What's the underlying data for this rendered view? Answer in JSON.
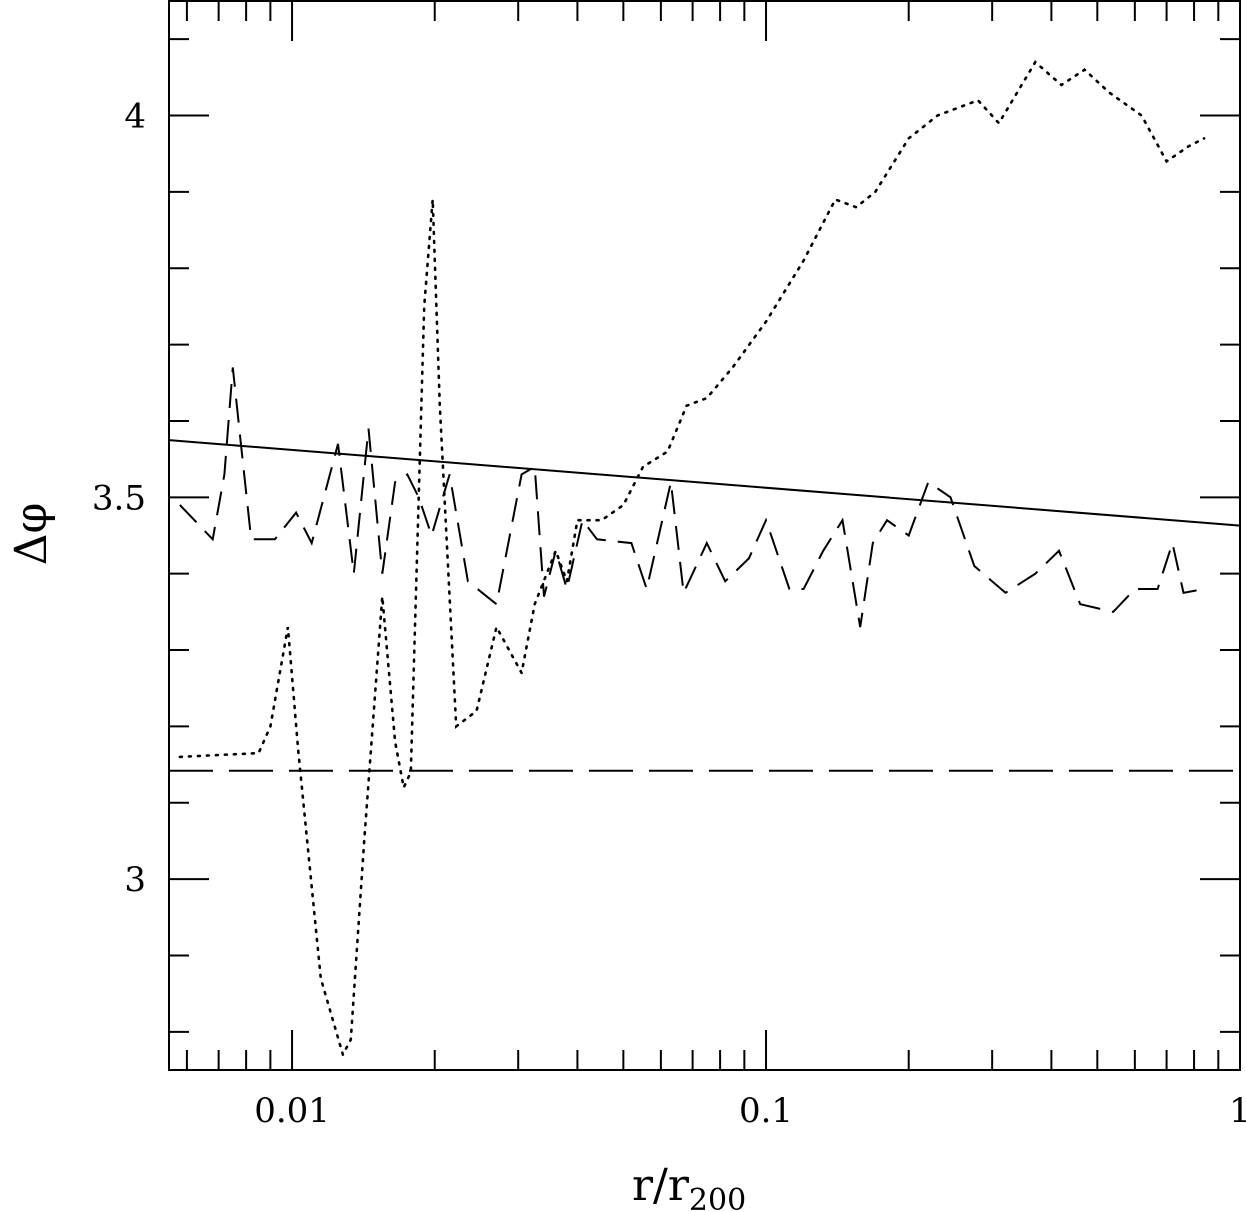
{
  "chart_data": {
    "type": "line",
    "xlabel": "r/r",
    "xlabel_sub": "200",
    "ylabel": "Δφ",
    "xscale": "log",
    "xlim": [
      0.0055,
      1.0
    ],
    "ylim": [
      2.75,
      4.15
    ],
    "grid": false,
    "legend": "none",
    "x_ticks": [
      {
        "value": 0.01,
        "label": "0.01"
      },
      {
        "value": 0.1,
        "label": "0.1"
      },
      {
        "value": 1,
        "label": "1"
      }
    ],
    "y_ticks": [
      {
        "value": 3,
        "label": "3"
      },
      {
        "value": 3.5,
        "label": "3.5"
      },
      {
        "value": 4,
        "label": "4"
      }
    ],
    "series": [
      {
        "style": "solid",
        "x": [
          0.0055,
          1.0
        ],
        "y": [
          3.575,
          3.463
        ]
      },
      {
        "style": "longdash",
        "x": [
          0.0055,
          1.0
        ],
        "y": [
          3.142,
          3.142
        ]
      },
      {
        "style": "dashed",
        "x": [
          0.0058,
          0.0068,
          0.0072,
          0.0075,
          0.0078,
          0.0082,
          0.0092,
          0.0102,
          0.011,
          0.0125,
          0.0135,
          0.0145,
          0.0155,
          0.0165,
          0.0175,
          0.0185,
          0.0197,
          0.0215,
          0.0235,
          0.027,
          0.0305,
          0.0325,
          0.034,
          0.036,
          0.038,
          0.041,
          0.044,
          0.052,
          0.056,
          0.063,
          0.067,
          0.075,
          0.082,
          0.092,
          0.1,
          0.112,
          0.12,
          0.132,
          0.145,
          0.158,
          0.168,
          0.18,
          0.2,
          0.22,
          0.245,
          0.275,
          0.32,
          0.37,
          0.415,
          0.46,
          0.54,
          0.6,
          0.67,
          0.72,
          0.76,
          0.84
        ],
        "y": [
          3.49,
          3.445,
          3.53,
          3.67,
          3.57,
          3.445,
          3.445,
          3.48,
          3.44,
          3.57,
          3.4,
          3.59,
          3.4,
          3.52,
          3.53,
          3.5,
          3.45,
          3.53,
          3.39,
          3.36,
          3.53,
          3.54,
          3.37,
          3.43,
          3.38,
          3.47,
          3.445,
          3.44,
          3.38,
          3.52,
          3.375,
          3.44,
          3.39,
          3.42,
          3.47,
          3.38,
          3.38,
          3.43,
          3.47,
          3.33,
          3.44,
          3.47,
          3.45,
          3.52,
          3.5,
          3.41,
          3.375,
          3.4,
          3.43,
          3.36,
          3.35,
          3.38,
          3.38,
          3.44,
          3.375,
          3.38
        ]
      },
      {
        "style": "dotted",
        "x": [
          0.0058,
          0.0085,
          0.009,
          0.0098,
          0.0103,
          0.0115,
          0.0128,
          0.0133,
          0.0142,
          0.0155,
          0.0165,
          0.0172,
          0.0178,
          0.019,
          0.0198,
          0.0205,
          0.0222,
          0.0245,
          0.027,
          0.0305,
          0.0325,
          0.036,
          0.038,
          0.04,
          0.045,
          0.05,
          0.055,
          0.062,
          0.068,
          0.075,
          0.085,
          0.1,
          0.12,
          0.14,
          0.155,
          0.17,
          0.2,
          0.23,
          0.28,
          0.31,
          0.37,
          0.42,
          0.47,
          0.53,
          0.62,
          0.7,
          0.78,
          0.84
        ],
        "y": [
          3.16,
          3.165,
          3.2,
          3.33,
          3.17,
          2.87,
          2.77,
          2.79,
          3.05,
          3.37,
          3.18,
          3.12,
          3.14,
          3.75,
          3.89,
          3.62,
          3.2,
          3.22,
          3.33,
          3.27,
          3.36,
          3.43,
          3.39,
          3.47,
          3.47,
          3.49,
          3.54,
          3.56,
          3.62,
          3.63,
          3.67,
          3.73,
          3.81,
          3.89,
          3.88,
          3.9,
          3.97,
          4.0,
          4.02,
          3.99,
          4.07,
          4.04,
          4.06,
          4.03,
          4.0,
          3.94,
          3.96,
          3.97
        ]
      }
    ]
  }
}
